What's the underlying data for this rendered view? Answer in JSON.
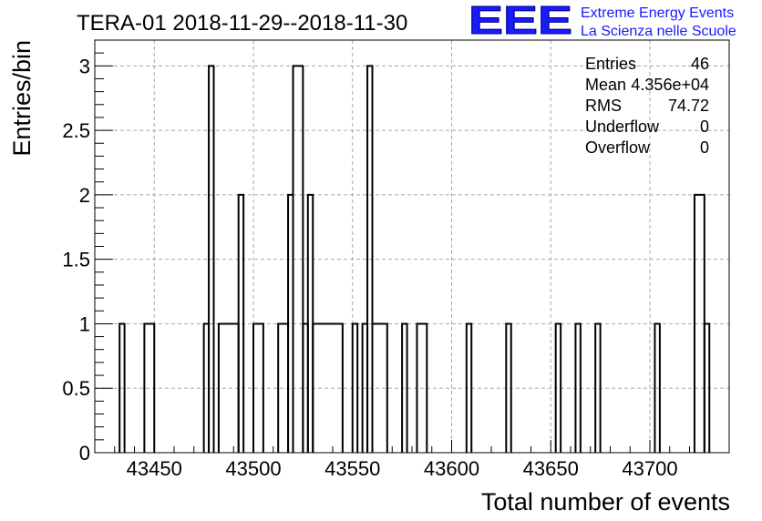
{
  "chart_data": {
    "type": "bar",
    "title": "TERA-01 2018-11-29--2018-11-30",
    "xlabel": "Total number of events",
    "ylabel": "Entries/bin",
    "xlim": [
      43420,
      43740
    ],
    "ylim": [
      0,
      3.2
    ],
    "bin_width": 5,
    "x_ticks": [
      43450,
      43500,
      43550,
      43600,
      43650,
      43700
    ],
    "y_ticks": [
      0,
      0.5,
      1,
      1.5,
      2,
      2.5,
      3
    ],
    "x_tick_labels": [
      "43450",
      "43500",
      "43550",
      "43600",
      "43650",
      "43700"
    ],
    "y_tick_labels": [
      "0",
      "0.5",
      "1",
      "1.5",
      "2",
      "2.5",
      "3"
    ],
    "grid": true,
    "bins": [
      {
        "x_low": 43432.5,
        "x_high": 43435,
        "value": 1
      },
      {
        "x_low": 43445,
        "x_high": 43450,
        "value": 1
      },
      {
        "x_low": 43475,
        "x_high": 43477.5,
        "value": 1
      },
      {
        "x_low": 43477.5,
        "x_high": 43480,
        "value": 3
      },
      {
        "x_low": 43482.5,
        "x_high": 43492.5,
        "value": 1
      },
      {
        "x_low": 43492.5,
        "x_high": 43495,
        "value": 2
      },
      {
        "x_low": 43500,
        "x_high": 43505,
        "value": 1
      },
      {
        "x_low": 43512.5,
        "x_high": 43517.5,
        "value": 1
      },
      {
        "x_low": 43517.5,
        "x_high": 43520,
        "value": 2
      },
      {
        "x_low": 43520,
        "x_high": 43525,
        "value": 3
      },
      {
        "x_low": 43525,
        "x_high": 43527.5,
        "value": 1
      },
      {
        "x_low": 43527.5,
        "x_high": 43530,
        "value": 2
      },
      {
        "x_low": 43530,
        "x_high": 43545,
        "value": 1
      },
      {
        "x_low": 43550,
        "x_high": 43552.5,
        "value": 1
      },
      {
        "x_low": 43555,
        "x_high": 43557.5,
        "value": 1
      },
      {
        "x_low": 43557.5,
        "x_high": 43560,
        "value": 3
      },
      {
        "x_low": 43560,
        "x_high": 43567.5,
        "value": 1
      },
      {
        "x_low": 43575,
        "x_high": 43577.5,
        "value": 1
      },
      {
        "x_low": 43582.5,
        "x_high": 43587.5,
        "value": 1
      },
      {
        "x_low": 43607.5,
        "x_high": 43610,
        "value": 1
      },
      {
        "x_low": 43627.5,
        "x_high": 43630,
        "value": 1
      },
      {
        "x_low": 43652.5,
        "x_high": 43655,
        "value": 1
      },
      {
        "x_low": 43662.5,
        "x_high": 43665,
        "value": 1
      },
      {
        "x_low": 43672.5,
        "x_high": 43675,
        "value": 1
      },
      {
        "x_low": 43702.5,
        "x_high": 43705,
        "value": 1
      },
      {
        "x_low": 43722.5,
        "x_high": 43727.5,
        "value": 2
      },
      {
        "x_low": 43727.5,
        "x_high": 43730,
        "value": 1
      }
    ],
    "stats": [
      {
        "label": "Entries",
        "value": "46"
      },
      {
        "label": "Mean",
        "value": "4.356e+04"
      },
      {
        "label": "RMS",
        "value": "74.72"
      },
      {
        "label": "Underflow",
        "value": "0"
      },
      {
        "label": "Overflow",
        "value": "0"
      }
    ]
  },
  "logo": {
    "mark": "EEE",
    "line1": "Extreme Energy Events",
    "line2": "La Scienza nelle Scuole",
    "color": "#1a1aff"
  }
}
